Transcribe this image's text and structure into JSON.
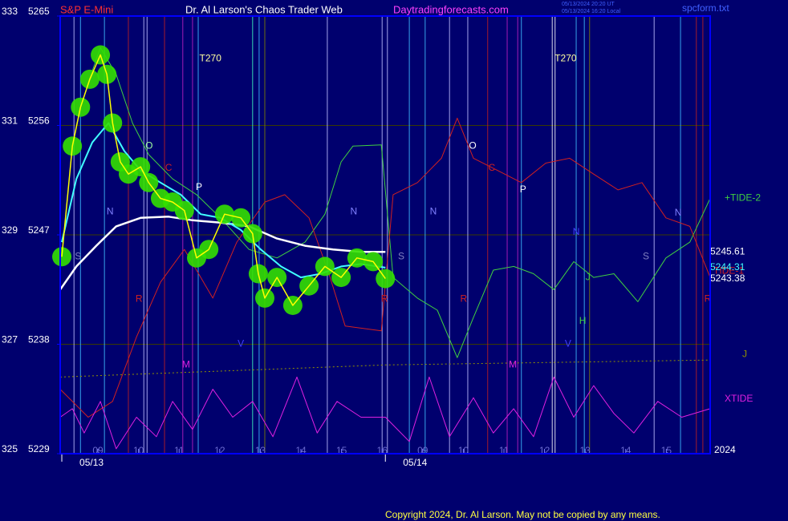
{
  "chart_data": {
    "type": "line",
    "symbol": "S&P E-Mini",
    "title": "Dr. Al Larson's Chaos Trader Web",
    "site": "Daytradingforecasts.com",
    "timestamp_ut": "05/13/2024 20:20 UT",
    "timestamp_local": "05/13/2024 16:20 Local",
    "file": "spcform.txt",
    "year": "2024",
    "copyright": "Copyright 2024, Dr. Al Larson. May not be copied by any means.",
    "ylim": [
      5229,
      5265
    ],
    "yticks": [
      5265,
      5256,
      5247,
      5238,
      5229
    ],
    "y2lim": [
      325,
      333
    ],
    "y2ticks": [
      333,
      331,
      329,
      327,
      325
    ],
    "xlim": [
      -0.93,
      15.08
    ],
    "xticks": [
      {
        "value": 0,
        "label": "09"
      },
      {
        "value": 1,
        "label": "10"
      },
      {
        "value": 2,
        "label": "11"
      },
      {
        "value": 3,
        "label": "12"
      },
      {
        "value": 4,
        "label": "13"
      },
      {
        "value": 5,
        "label": "14"
      },
      {
        "value": 6,
        "label": "15"
      },
      {
        "value": 7,
        "label": "16"
      },
      {
        "value": 8,
        "label": "09"
      },
      {
        "value": 9,
        "label": "10"
      },
      {
        "value": 10,
        "label": "11"
      },
      {
        "value": 11,
        "label": "12"
      },
      {
        "value": 12,
        "label": "13"
      },
      {
        "value": 13,
        "label": "14"
      },
      {
        "value": 14,
        "label": "15"
      }
    ],
    "xdates": [
      {
        "value": -0.89,
        "label": "05/13"
      },
      {
        "value": 7.08,
        "label": "05/14"
      }
    ],
    "grid": true,
    "series": [
      {
        "name": "+TIDE-2",
        "color": "#40d040",
        "width": 1,
        "x": [
          -0.24,
          0.06,
          0.45,
          0.85,
          1.25,
          1.84,
          2.43,
          3.02,
          3.72,
          4.41,
          5.1,
          5.59,
          5.99,
          6.28,
          6.98,
          7.27,
          7.87,
          8.36,
          8.85,
          9.25,
          9.74,
          10.24,
          10.73,
          11.23,
          11.72,
          12.21,
          12.71,
          13.3,
          13.99,
          14.58,
          15.08
        ],
        "values": [
          5259.5,
          5262.4,
          5260.2,
          5256.2,
          5253.6,
          5251.6,
          5250.3,
          5248.4,
          5245.8,
          5245.1,
          5246.4,
          5248.7,
          5253.0,
          5254.3,
          5254.4,
          5243.5,
          5241.8,
          5240.8,
          5236.9,
          5240.2,
          5244.1,
          5244.4,
          5243.8,
          5242.5,
          5244.8,
          5243.5,
          5243.8,
          5241.5,
          5245.1,
          5246.4,
          5250.0
        ]
      },
      {
        "name": "TIDE-1",
        "color": "#d02020",
        "width": 1,
        "x": [
          -0.93,
          -0.24,
          0.36,
          0.95,
          1.54,
          2.13,
          2.83,
          3.42,
          4.11,
          4.6,
          5.2,
          5.69,
          6.09,
          6.98,
          7.27,
          7.87,
          8.46,
          8.85,
          9.25,
          9.84,
          10.43,
          11.03,
          11.62,
          12.21,
          12.81,
          13.4,
          13.99,
          14.58,
          15.08
        ],
        "values": [
          5234.3,
          5232.0,
          5233.3,
          5238.6,
          5243.1,
          5245.8,
          5241.8,
          5246.4,
          5249.7,
          5250.3,
          5248.4,
          5243.8,
          5239.5,
          5239.1,
          5250.3,
          5251.3,
          5253.3,
          5256.6,
          5253.3,
          5252.3,
          5251.3,
          5252.9,
          5253.3,
          5252.0,
          5250.7,
          5251.3,
          5248.4,
          5247.7,
          5243.5
        ]
      },
      {
        "name": "XTIDE",
        "color": "#e020e0",
        "width": 1,
        "x": [
          -0.93,
          -0.63,
          -0.34,
          0.06,
          0.45,
          0.95,
          1.44,
          1.84,
          2.33,
          2.83,
          3.32,
          3.81,
          4.31,
          4.9,
          5.4,
          5.89,
          6.48,
          7.08,
          7.67,
          8.16,
          8.66,
          9.25,
          9.74,
          10.24,
          10.73,
          11.23,
          11.72,
          12.21,
          12.71,
          13.2,
          13.79,
          14.38,
          15.08
        ],
        "values": [
          5232.0,
          5232.7,
          5230.7,
          5233.3,
          5229.4,
          5232.0,
          5230.4,
          5233.3,
          5231.0,
          5234.3,
          5232.0,
          5233.3,
          5230.4,
          5235.3,
          5230.7,
          5233.3,
          5232.0,
          5232.0,
          5230.0,
          5235.3,
          5230.4,
          5233.6,
          5230.7,
          5232.7,
          5230.4,
          5235.3,
          5232.0,
          5234.6,
          5232.3,
          5230.7,
          5233.3,
          5232.0,
          5232.7
        ]
      },
      {
        "name": "J",
        "color": "#909000",
        "width": 1,
        "dash": true,
        "x": [
          -0.93,
          7.08,
          15.08
        ],
        "values": [
          5235.3,
          5236.3,
          5236.7
        ]
      },
      {
        "color": "#ffffff",
        "width": 2.5,
        "last": 5245.61,
        "x": [
          -0.93,
          -0.53,
          -0.04,
          0.45,
          1.05,
          1.74,
          2.33,
          3.02,
          3.72,
          4.41,
          5.1,
          5.79,
          6.48,
          7.08
        ],
        "values": [
          5242.5,
          5244.4,
          5246.1,
          5247.7,
          5248.4,
          5248.5,
          5248.2,
          5248.0,
          5247.7,
          5246.7,
          5246.1,
          5245.8,
          5245.6,
          5245.6
        ]
      },
      {
        "color": "#40ffff",
        "width": 2,
        "last": 5244.31,
        "x": [
          -0.89,
          -0.53,
          -0.14,
          0.26,
          0.65,
          1.05,
          1.54,
          2.04,
          2.53,
          3.02,
          3.52,
          4.01,
          4.51,
          5.0,
          5.49,
          5.99,
          6.48,
          7.08
        ],
        "values": [
          5246.4,
          5251.6,
          5254.6,
          5256.2,
          5253.9,
          5252.3,
          5251.3,
          5250.3,
          5248.7,
          5248.4,
          5247.4,
          5245.8,
          5244.4,
          5243.5,
          5243.8,
          5244.4,
          5244.6,
          5244.3
        ]
      },
      {
        "color": "#ffff00",
        "width": 1.5,
        "last": 5243.38,
        "marker_color": "#33e000",
        "x": [
          -0.89,
          -0.63,
          -0.43,
          -0.2,
          0.06,
          0.22,
          0.36,
          0.55,
          0.75,
          1.05,
          1.25,
          1.54,
          1.84,
          2.13,
          2.43,
          2.73,
          3.12,
          3.52,
          3.81,
          3.95,
          4.11,
          4.41,
          4.8,
          5.2,
          5.59,
          5.99,
          6.38,
          6.78,
          7.08
        ],
        "values": [
          5245.2,
          5254.3,
          5257.5,
          5259.8,
          5261.8,
          5260.2,
          5256.2,
          5253.0,
          5252.0,
          5252.6,
          5251.3,
          5250.0,
          5249.7,
          5249.0,
          5245.1,
          5245.8,
          5248.7,
          5248.4,
          5247.1,
          5243.8,
          5241.8,
          5243.5,
          5241.2,
          5242.8,
          5244.4,
          5243.5,
          5245.1,
          5244.8,
          5243.4
        ]
      }
    ],
    "event_lines": [
      {
        "x": -0.59,
        "color": "#c0c0ff"
      },
      {
        "x": -0.43,
        "color": "#40c0ff"
      },
      {
        "x": 0.16,
        "color": "#40c0ff"
      },
      {
        "x": 0.75,
        "color": "#c02020"
      },
      {
        "x": 1.13,
        "color": "#c0c0ff"
      },
      {
        "x": 1.21,
        "color": "#c0c0ff"
      },
      {
        "x": 1.64,
        "color": "#c02020"
      },
      {
        "x": 2.09,
        "color": "#c020c0"
      },
      {
        "x": 2.33,
        "color": "#c020c0"
      },
      {
        "x": 2.47,
        "color": "#40c0ff"
      },
      {
        "x": 3.81,
        "color": "#40ffc0"
      },
      {
        "x": 3.97,
        "color": "#40c0ff"
      },
      {
        "x": 4.11,
        "color": "#808000"
      },
      {
        "x": 5.65,
        "color": "#c0c0ff"
      },
      {
        "x": 7.0,
        "color": "#c0c0ff"
      },
      {
        "x": 7.13,
        "color": "#c0c0ff"
      },
      {
        "x": 7.67,
        "color": "#40c0ff"
      },
      {
        "x": 8.06,
        "color": "#40c0ff"
      },
      {
        "x": 8.66,
        "color": "#c0c0ff"
      },
      {
        "x": 9.11,
        "color": "#c0c0ff"
      },
      {
        "x": 9.6,
        "color": "#c02020"
      },
      {
        "x": 10.08,
        "color": "#c020c0"
      },
      {
        "x": 10.34,
        "color": "#c020c0"
      },
      {
        "x": 10.43,
        "color": "#40c0ff"
      },
      {
        "x": 11.19,
        "color": "#ffffff"
      },
      {
        "x": 11.26,
        "color": "#ffffff"
      },
      {
        "x": 11.78,
        "color": "#40c0ff"
      },
      {
        "x": 11.98,
        "color": "#40c0ff"
      },
      {
        "x": 12.11,
        "color": "#808000"
      },
      {
        "x": 13.7,
        "color": "#c0c0ff"
      },
      {
        "x": 14.35,
        "color": "#40c0ff"
      },
      {
        "x": 14.74,
        "color": "#c02020"
      },
      {
        "x": 14.9,
        "color": "#c02020"
      }
    ],
    "annotations": [
      {
        "text": "S",
        "x": -0.49,
        "y": 5245.2,
        "color": "#8080c0"
      },
      {
        "text": "N",
        "x": 0.3,
        "y": 5248.9,
        "color": "#8080ff"
      },
      {
        "text": "O",
        "x": 1.26,
        "y": 5254.3,
        "color": "#a0ffa0"
      },
      {
        "text": "C",
        "x": 1.74,
        "y": 5252.5,
        "color": "#d02020"
      },
      {
        "text": "P",
        "x": 2.49,
        "y": 5250.9,
        "color": "#ffffff"
      },
      {
        "text": "R",
        "x": 1.01,
        "y": 5241.7,
        "color": "#d02020"
      },
      {
        "text": "M",
        "x": 2.17,
        "y": 5236.3,
        "color": "#e020e0"
      },
      {
        "text": "V",
        "x": 3.52,
        "y": 5238.0,
        "color": "#4040ff"
      },
      {
        "text": "T270",
        "x": 2.77,
        "y": 5261.5,
        "color": "#ffffa0"
      },
      {
        "text": "N",
        "x": 6.3,
        "y": 5248.9,
        "color": "#8080ff"
      },
      {
        "text": "S",
        "x": 7.47,
        "y": 5245.2,
        "color": "#8080c0"
      },
      {
        "text": "R",
        "x": 7.06,
        "y": 5241.7,
        "color": "#d02020"
      },
      {
        "text": "N",
        "x": 8.26,
        "y": 5248.9,
        "color": "#8080ff"
      },
      {
        "text": "O",
        "x": 9.23,
        "y": 5254.3,
        "color": "#ffffff"
      },
      {
        "text": "C",
        "x": 9.7,
        "y": 5252.5,
        "color": "#d02020"
      },
      {
        "text": "P",
        "x": 10.47,
        "y": 5250.7,
        "color": "#ffffff"
      },
      {
        "text": "R",
        "x": 9.01,
        "y": 5241.7,
        "color": "#d02020"
      },
      {
        "text": "M",
        "x": 10.22,
        "y": 5236.3,
        "color": "#e020e0"
      },
      {
        "text": "T270",
        "x": 11.52,
        "y": 5261.5,
        "color": "#ffffa0"
      },
      {
        "text": "N",
        "x": 11.78,
        "y": 5247.2,
        "color": "#4040ff"
      },
      {
        "text": "J",
        "x": 12.07,
        "y": 5243.5,
        "color": "#40d040"
      },
      {
        "text": "H",
        "x": 11.94,
        "y": 5239.9,
        "color": "#40d040"
      },
      {
        "text": "V",
        "x": 11.58,
        "y": 5238.0,
        "color": "#4040ff"
      },
      {
        "text": "S",
        "x": 13.5,
        "y": 5245.2,
        "color": "#8080c0"
      },
      {
        "text": "N",
        "x": 14.29,
        "y": 5248.8,
        "color": "#8080ff"
      },
      {
        "text": "R",
        "x": 15.02,
        "y": 5241.7,
        "color": "#d02020"
      }
    ]
  }
}
